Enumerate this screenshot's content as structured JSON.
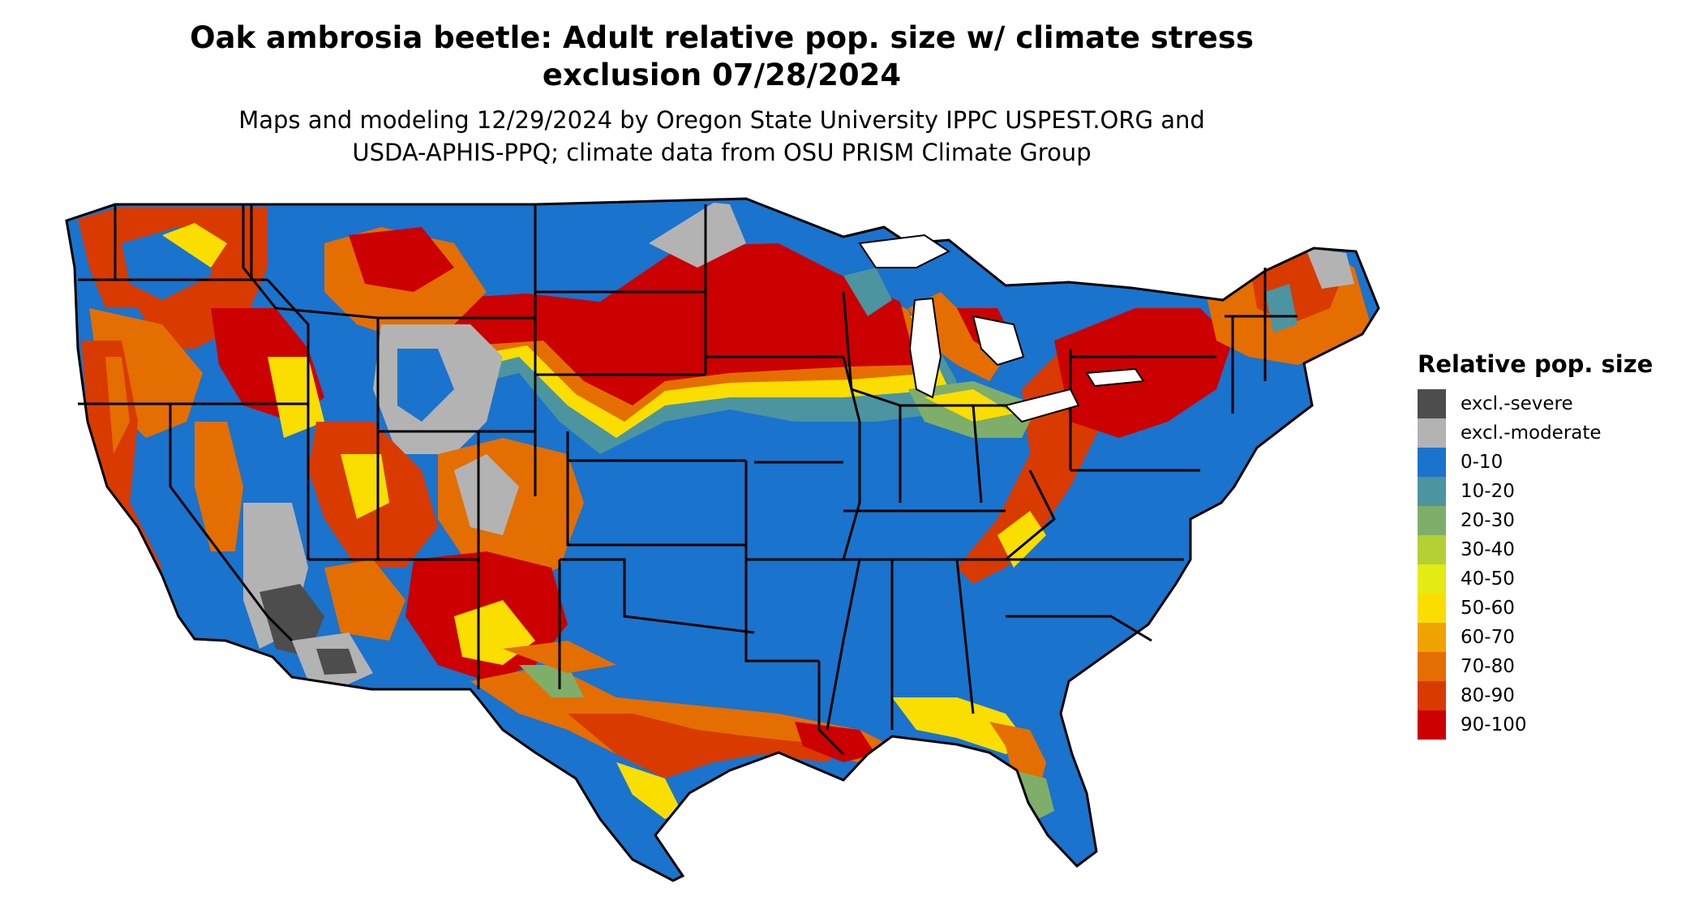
{
  "title_line1": "Oak ambrosia beetle: Adult relative pop. size w/ climate stress",
  "title_line2": "exclusion 07/28/2024",
  "subtitle_line1": "Maps and modeling 12/29/2024 by Oregon State University IPPC USPEST.ORG and",
  "subtitle_line2": "USDA-APHIS-PPQ; climate data from OSU PRISM Climate Group",
  "legend": {
    "title": "Relative pop. size",
    "items": [
      {
        "label": "excl.-severe",
        "color": "#4d4d4d"
      },
      {
        "label": "excl.-moderate",
        "color": "#b3b3b3"
      },
      {
        "label": "0-10",
        "color": "#1a73cc"
      },
      {
        "label": "10-20",
        "color": "#4b94a0"
      },
      {
        "label": "20-30",
        "color": "#7fae6a"
      },
      {
        "label": "30-40",
        "color": "#b3d034"
      },
      {
        "label": "40-50",
        "color": "#e3eb14"
      },
      {
        "label": "50-60",
        "color": "#f9de00"
      },
      {
        "label": "60-70",
        "color": "#efa300"
      },
      {
        "label": "70-80",
        "color": "#e56e00"
      },
      {
        "label": "80-90",
        "color": "#d93a00"
      },
      {
        "label": "90-100",
        "color": "#cc0000"
      }
    ]
  },
  "colors": {
    "background": "#ffffff",
    "state_border": "#000000"
  }
}
